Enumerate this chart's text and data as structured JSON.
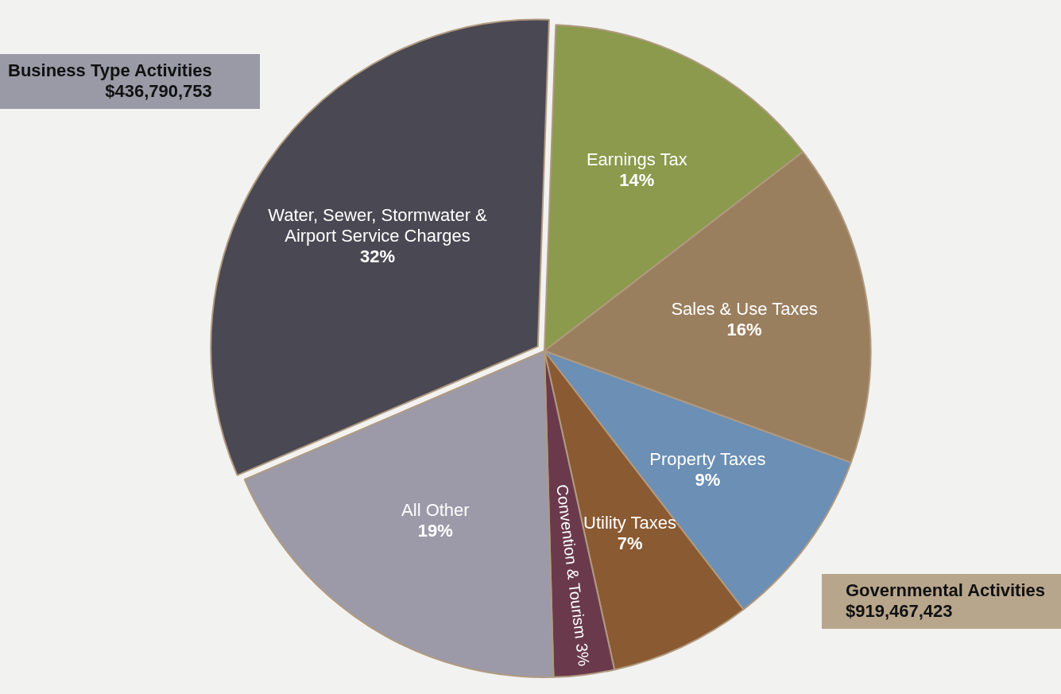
{
  "chart_data": {
    "type": "pie",
    "categories": [
      "Earnings Tax",
      "Sales & Use Taxes",
      "Property Taxes",
      "Utility Taxes",
      "Convention & Tourism",
      "All Other",
      "Water, Sewer, Stormwater & Airport Service Charges"
    ],
    "values": [
      14,
      16,
      9,
      7,
      3,
      19,
      32
    ],
    "colors": [
      "#8b9a4c",
      "#9a7f5f",
      "#6b8fb5",
      "#8a5a32",
      "#6a3a4c",
      "#9c9aa8",
      "#4a4852"
    ],
    "value_labels": [
      "14%",
      "16%",
      "9%",
      "7%",
      "3%",
      "19%",
      "32%"
    ],
    "legend": false,
    "annotations": [
      "Business Type Activities\n$436,790,753",
      "Governmental Activities\n$919,467,423"
    ]
  }
}
